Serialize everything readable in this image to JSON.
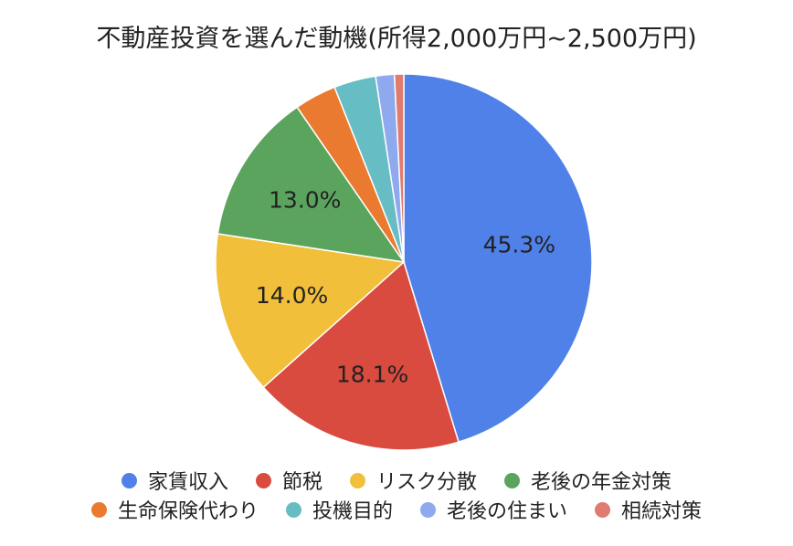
{
  "chart_data": {
    "type": "pie",
    "title": "不動産投資を選んだ動機(所得2,000万円~2,500万円)",
    "slices": [
      {
        "label": "家賃収入",
        "value": 45.3,
        "color": "#4f81e8",
        "value_label": "45.3%"
      },
      {
        "label": "節税",
        "value": 18.1,
        "color": "#d94a3f",
        "value_label": "18.1%"
      },
      {
        "label": "リスク分散",
        "value": 14.0,
        "color": "#f2bf3b",
        "value_label": "14.0%"
      },
      {
        "label": "老後の年金対策",
        "value": 13.0,
        "color": "#5ba45d",
        "value_label": "13.0%"
      },
      {
        "label": "生命保険代わり",
        "value": 3.6,
        "color": "#ea7a30",
        "value_label": ""
      },
      {
        "label": "投機目的",
        "value": 3.6,
        "color": "#66bdc3",
        "value_label": ""
      },
      {
        "label": "老後の住まい",
        "value": 1.6,
        "color": "#8fa9ef",
        "value_label": ""
      },
      {
        "label": "相続対策",
        "value": 0.8,
        "color": "#e07b70",
        "value_label": ""
      }
    ],
    "legend_position": "bottom"
  }
}
